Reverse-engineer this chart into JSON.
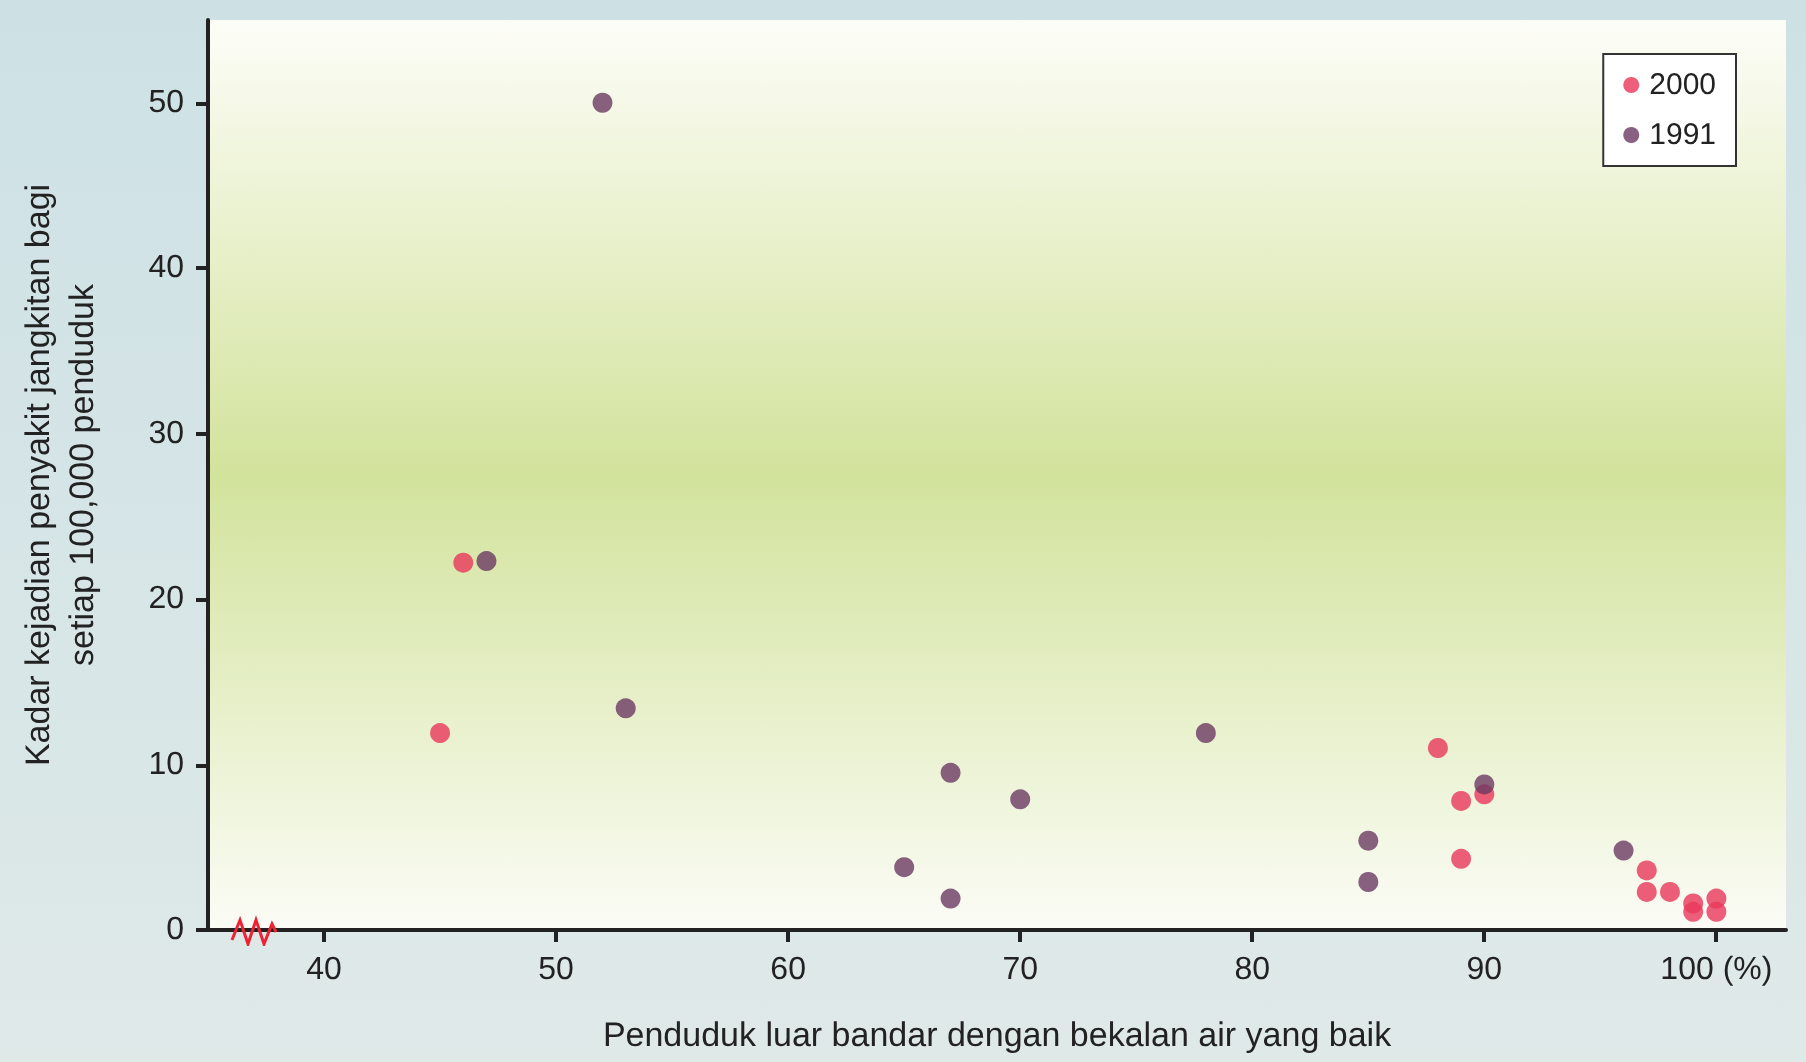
{
  "chart_data": {
    "type": "scatter",
    "xlabel": "Penduduk luar bandar dengan bekalan air yang baik",
    "ylabel": "Kadar kejadian penyakit jangkitan bagi\nsetiap 100,000 penduduk",
    "series": [
      {
        "name": "2000",
        "color": "#e8375a",
        "x": [
          46,
          45,
          88,
          89,
          90,
          89,
          97,
          97,
          98,
          99,
          99,
          100,
          100
        ],
        "values": [
          22.2,
          11.9,
          11.0,
          7.8,
          8.2,
          4.3,
          3.6,
          2.3,
          2.3,
          1.6,
          1.1,
          1.9,
          1.1
        ]
      },
      {
        "name": "1991",
        "color": "#6b3a63",
        "x": [
          52,
          47,
          53,
          67,
          70,
          78,
          65,
          67,
          85,
          85,
          90,
          96
        ],
        "values": [
          50,
          22.3,
          13.4,
          9.5,
          7.9,
          11.9,
          3.8,
          1.9,
          5.4,
          2.9,
          8.8,
          4.8
        ]
      }
    ],
    "xlim": [
      35,
      103
    ],
    "xticks": [
      40,
      50,
      60,
      70,
      80,
      90,
      {
        "value": 100,
        "label": "100 (%)"
      }
    ],
    "ylim": [
      0,
      55
    ],
    "yticks": [
      0,
      10,
      20,
      30,
      40,
      50
    ],
    "grid": false,
    "legend": "top right",
    "marker": "circle"
  }
}
